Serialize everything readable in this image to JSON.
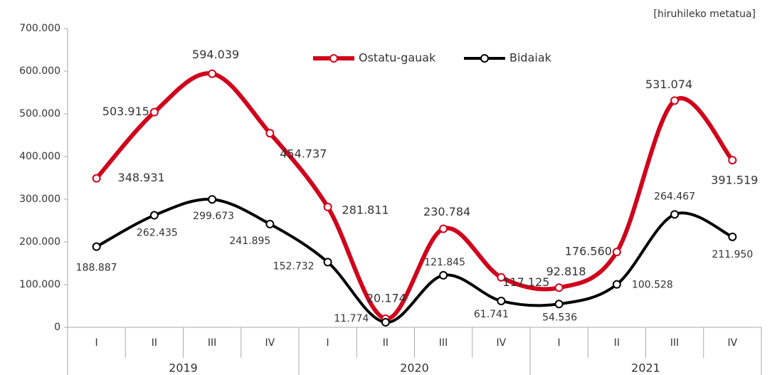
{
  "chart_data": {
    "type": "line",
    "annotation": "[hiruhileko metatua]",
    "categories": [
      "I",
      "II",
      "III",
      "IV",
      "I",
      "II",
      "III",
      "IV",
      "I",
      "II",
      "III",
      "IV"
    ],
    "years": [
      "2019",
      "2020",
      "2021"
    ],
    "series": [
      {
        "name": "Ostatu-gauak",
        "color": "#d0021b",
        "values": [
          348931,
          503915,
          594039,
          454737,
          281811,
          20174,
          230784,
          117125,
          92818,
          176560,
          531074,
          391519
        ],
        "value_labels": [
          "348.931",
          "503.915",
          "594.039",
          "454.737",
          "281.811",
          "20.174",
          "230.784",
          "117.125",
          "92.818",
          "176.560",
          "531.074",
          "391.519"
        ]
      },
      {
        "name": "Bidaiak",
        "color": "#000000",
        "values": [
          188887,
          262435,
          299673,
          241895,
          152732,
          11774,
          121845,
          61741,
          54536,
          100528,
          264467,
          211950
        ],
        "value_labels": [
          "188.887",
          "262.435",
          "299.673",
          "241.895",
          "152.732",
          "11.774",
          "121.845",
          "61.741",
          "54.536",
          "100.528",
          "264.467",
          "211.950"
        ]
      }
    ],
    "ylim": [
      0,
      700000
    ],
    "yticks": [
      0,
      {
        "value": 100000,
        "label": "100.000"
      },
      {
        "value": 200000,
        "label": "200.000"
      },
      {
        "value": 300000,
        "label": "300.000"
      },
      {
        "value": 400000,
        "label": "400.000"
      },
      {
        "value": 500000,
        "label": "500.000"
      },
      {
        "value": 600000,
        "label": "600.000"
      },
      {
        "value": 700000,
        "label": "700.000"
      }
    ],
    "grid": false
  }
}
